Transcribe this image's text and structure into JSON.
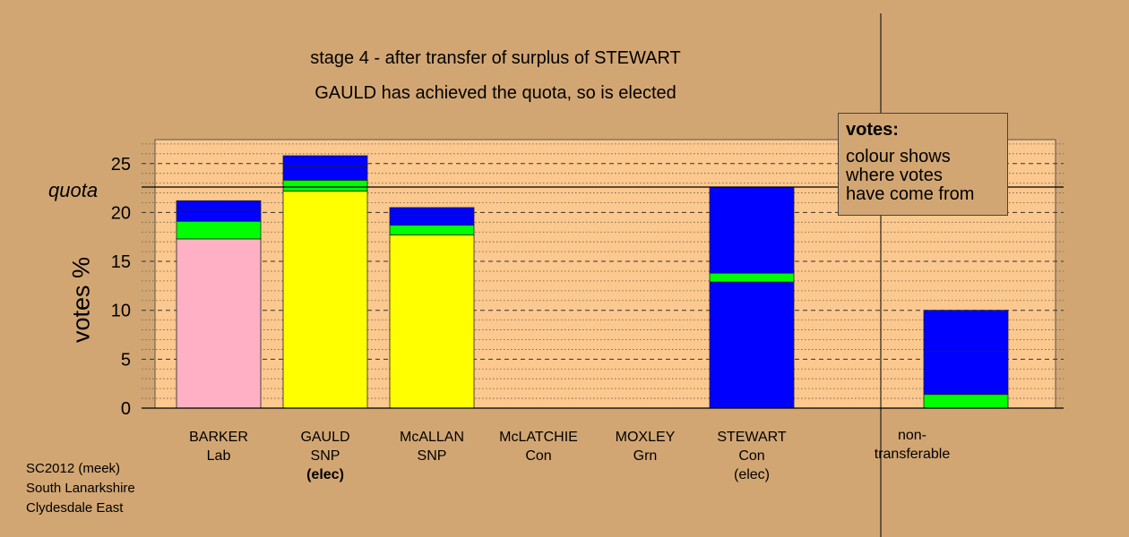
{
  "titles": {
    "line1": "stage 4 - after transfer of surplus of STEWART",
    "line2": "GAULD has achieved the quota, so is elected"
  },
  "quota_label": "quota",
  "legend": {
    "title": "votes:",
    "lines": [
      "colour shows",
      "where votes",
      "have come from"
    ]
  },
  "footer": {
    "line1": "SC2012 (meek)",
    "line2": "South Lanarkshire",
    "line3": "Clydesdale East"
  },
  "candidates": [
    {
      "name": "BARKER",
      "party": "Lab",
      "status": ""
    },
    {
      "name": "GAULD",
      "party": "SNP",
      "status": "(elec)"
    },
    {
      "name": "McALLAN",
      "party": "SNP",
      "status": ""
    },
    {
      "name": "McLATCHIE",
      "party": "Con",
      "status": ""
    },
    {
      "name": "MOXLEY",
      "party": "Grn",
      "status": ""
    },
    {
      "name": "STEWART",
      "party": "Con",
      "status": "(elec)"
    }
  ],
  "nontransferable": {
    "line1": "non-",
    "line2": "transferable"
  },
  "colors": {
    "background": "#d2a673",
    "plot_area": "#fbc88f",
    "Lab": "#ffb0c4",
    "SNP": "#ffff00",
    "Con": "#0000ff",
    "Grn": "#00ff00"
  },
  "chart_data": {
    "type": "bar",
    "stacked": true,
    "ylabel": "votes %",
    "ylim": [
      0,
      27.5
    ],
    "yticks": [
      0,
      5,
      10,
      15,
      20,
      25
    ],
    "quota": 22.6,
    "categories": [
      "BARKER",
      "GAULD",
      "McALLAN",
      "McLATCHIE",
      "MOXLEY",
      "STEWART",
      "non-transferable"
    ],
    "bars": [
      {
        "category": "BARKER",
        "segments": [
          {
            "color": "#ffb0c4",
            "value": 17.3
          },
          {
            "color": "#00ff00",
            "value": 1.8
          },
          {
            "color": "#0000ff",
            "value": 1.2
          },
          {
            "color": "#0000ff",
            "value": 0.9
          }
        ]
      },
      {
        "category": "GAULD",
        "segments": [
          {
            "color": "#ffff00",
            "value": 22.2
          },
          {
            "color": "#00ff00",
            "value": 1.1
          },
          {
            "color": "#0000ff",
            "value": 1.4
          },
          {
            "color": "#0000ff",
            "value": 1.1
          }
        ]
      },
      {
        "category": "McALLAN",
        "segments": [
          {
            "color": "#ffff00",
            "value": 17.7
          },
          {
            "color": "#00ff00",
            "value": 1.0
          },
          {
            "color": "#0000ff",
            "value": 1.0
          },
          {
            "color": "#0000ff",
            "value": 0.8
          }
        ]
      },
      {
        "category": "McLATCHIE",
        "segments": []
      },
      {
        "category": "MOXLEY",
        "segments": []
      },
      {
        "category": "STEWART",
        "segments": [
          {
            "color": "#0000ff",
            "value": 12.9
          },
          {
            "color": "#00ff00",
            "value": 0.9
          },
          {
            "color": "#0000ff",
            "value": 8.8
          }
        ]
      },
      {
        "category": "non-transferable",
        "segments": [
          {
            "color": "#00ff00",
            "value": 1.4
          },
          {
            "color": "#0000ff",
            "value": 4.4
          },
          {
            "color": "#0000ff",
            "value": 4.2
          }
        ]
      }
    ]
  }
}
